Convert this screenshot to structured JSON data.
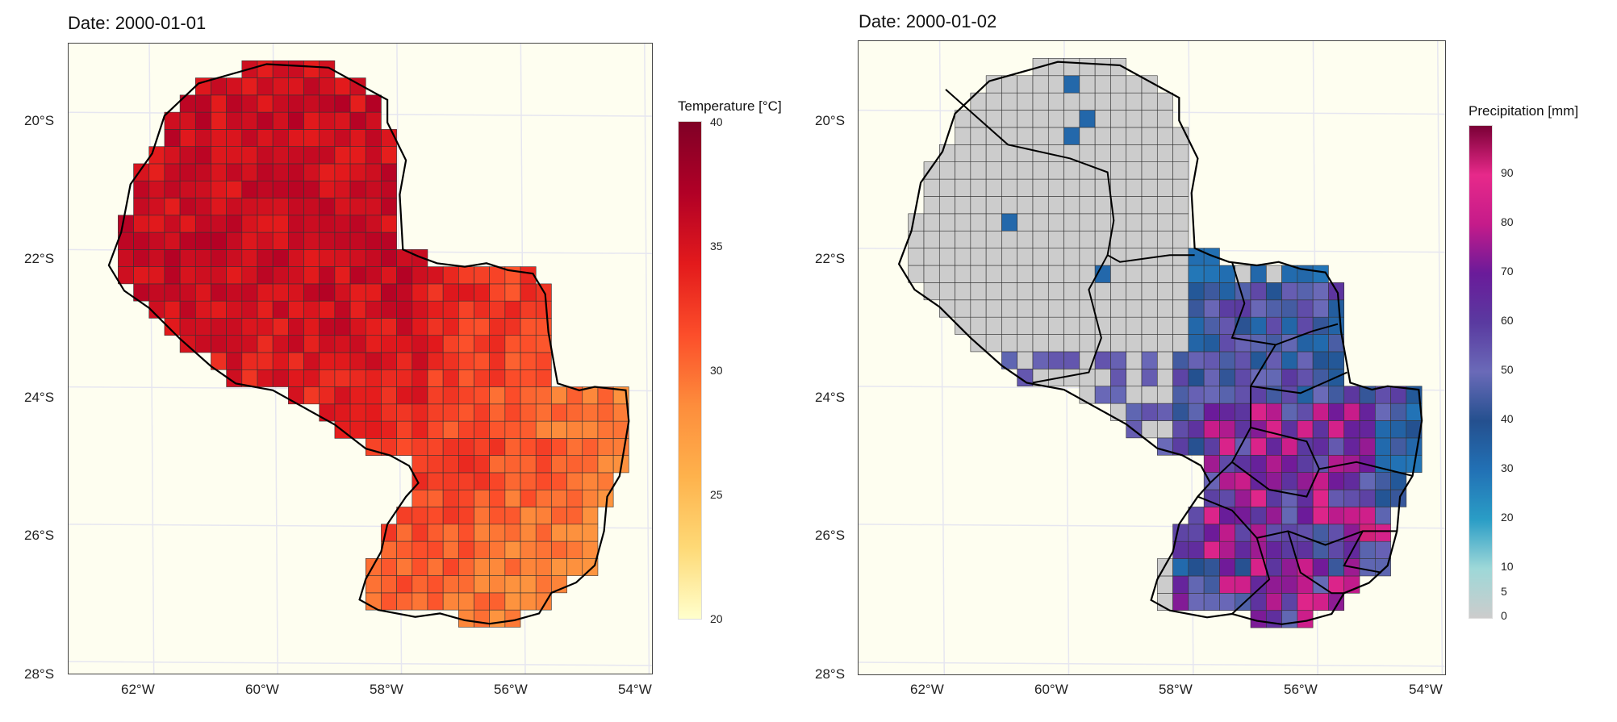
{
  "panels": [
    {
      "title": "Date: 2000-01-01",
      "variable": "temperature",
      "legend": {
        "title": "Temperature [°C]",
        "ticks": [
          "40",
          "35",
          "30",
          "25",
          "20"
        ],
        "min": 20,
        "max": 40,
        "colors": [
          "#ffffcc",
          "#fed976",
          "#feb24c",
          "#fd8d3c",
          "#fc4e2a",
          "#e31a1c",
          "#b10026",
          "#800026"
        ]
      }
    },
    {
      "title": "Date: 2000-01-02",
      "variable": "precipitation",
      "legend": {
        "title": "Precipitation [mm]",
        "ticks": [
          "90",
          "80",
          "70",
          "60",
          "50",
          "40",
          "30",
          "20",
          "10",
          "5",
          "0"
        ],
        "min": 0,
        "max": 100,
        "colors": [
          "#cccccc",
          "#9ed8d8",
          "#2a9dc6",
          "#2271b5",
          "#24508f",
          "#6a6ab8",
          "#5a3aa0",
          "#6a1b9a",
          "#c51b8a",
          "#e7298a",
          "#7a0036"
        ]
      }
    }
  ],
  "axes": {
    "y_labels": [
      "20°S",
      "22°S",
      "24°S",
      "26°S",
      "28°S"
    ],
    "x_labels": [
      "62°W",
      "60°W",
      "58°W",
      "56°W",
      "54°W"
    ]
  },
  "map_data": {
    "region": "Paraguay",
    "grid_resolution_deg": 0.25,
    "lon_range": [
      -63,
      -54
    ],
    "lat_range": [
      -28,
      -19
    ],
    "temperature_range_c": [
      28,
      39
    ],
    "precipitation_range_mm": [
      0,
      99
    ]
  },
  "colors": {
    "map_background": "#fefef0",
    "grid_line": "#e6e6f0",
    "cell_border": "#333333",
    "boundary": "#000000"
  }
}
